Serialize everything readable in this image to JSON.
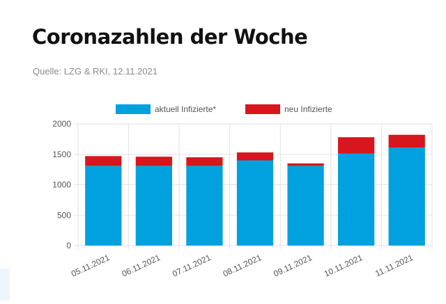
{
  "page": {
    "title": "Coronazahlen der Woche",
    "source": "Quelle: LZG & RKI, 12.11.2021"
  },
  "colors": {
    "series_1": "#00a1de",
    "series_2": "#d7161e",
    "grid": "#e2e2e2",
    "axis_text": "#555555"
  },
  "chart_data": {
    "type": "bar",
    "stacked": true,
    "categories": [
      "05.11.2021",
      "06.11.2021",
      "07.11.2021",
      "08.11.2021",
      "09.11.2021",
      "10.11.2021",
      "11.11.2021"
    ],
    "series": [
      {
        "name": "aktuell Infizierte*",
        "values": [
          1310,
          1310,
          1310,
          1400,
          1310,
          1510,
          1610
        ]
      },
      {
        "name": "neu Infizierte",
        "values": [
          160,
          150,
          140,
          130,
          40,
          270,
          210
        ]
      }
    ],
    "y_ticks": [
      "0",
      "500",
      "1000",
      "1500",
      "2000"
    ],
    "ylim": [
      0,
      2000
    ],
    "grid": true,
    "legend_position": "top-center"
  }
}
